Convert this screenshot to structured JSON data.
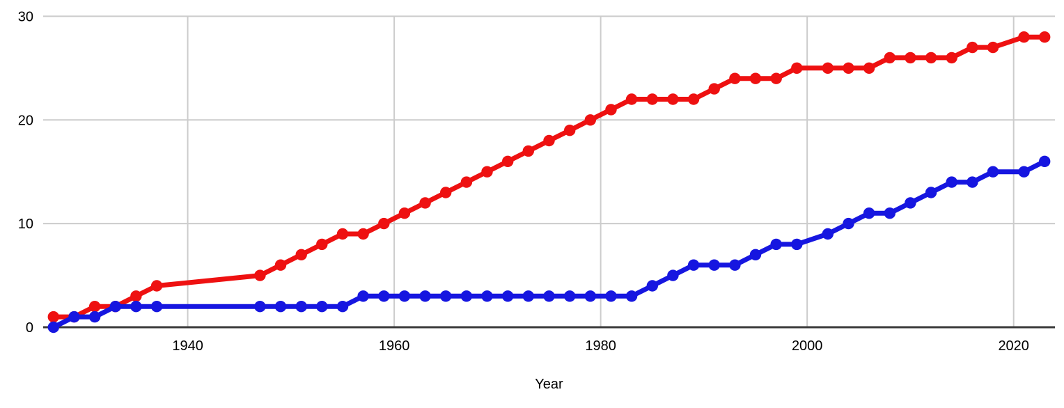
{
  "chart_data": {
    "type": "line",
    "xlabel": "Year",
    "grid": true,
    "legend_position": "none",
    "xlim": [
      1926,
      2024
    ],
    "ylim": [
      0,
      30
    ],
    "x_ticks": [
      1940,
      1960,
      1980,
      2000,
      2020
    ],
    "y_ticks": [
      0,
      10,
      20,
      30
    ],
    "x": [
      1927,
      1929,
      1931,
      1933,
      1935,
      1937,
      1947,
      1949,
      1951,
      1953,
      1955,
      1957,
      1959,
      1961,
      1963,
      1965,
      1967,
      1969,
      1971,
      1973,
      1975,
      1977,
      1979,
      1981,
      1983,
      1985,
      1987,
      1989,
      1991,
      1993,
      1995,
      1997,
      1999,
      2002,
      2004,
      2006,
      2008,
      2010,
      2012,
      2014,
      2016,
      2018,
      2021,
      2023
    ],
    "series": [
      {
        "name": "red-series",
        "color": "#ee1111",
        "values": [
          1,
          1,
          2,
          2,
          3,
          4,
          5,
          6,
          7,
          8,
          9,
          9,
          10,
          11,
          12,
          13,
          14,
          15,
          16,
          17,
          18,
          19,
          20,
          21,
          22,
          22,
          22,
          22,
          23,
          24,
          24,
          24,
          25,
          25,
          25,
          25,
          26,
          26,
          26,
          26,
          27,
          27,
          28,
          28
        ]
      },
      {
        "name": "blue-series",
        "color": "#1616e0",
        "values": [
          0,
          1,
          1,
          2,
          2,
          2,
          2,
          2,
          2,
          2,
          2,
          3,
          3,
          3,
          3,
          3,
          3,
          3,
          3,
          3,
          3,
          3,
          3,
          3,
          3,
          4,
          5,
          6,
          6,
          6,
          7,
          8,
          8,
          9,
          10,
          11,
          11,
          12,
          13,
          14,
          14,
          15,
          15,
          16
        ]
      }
    ],
    "colors": {
      "grid": "#cccccc",
      "axis": "#3a3a3a",
      "tick_label": "#000000",
      "background": "#ffffff"
    }
  }
}
